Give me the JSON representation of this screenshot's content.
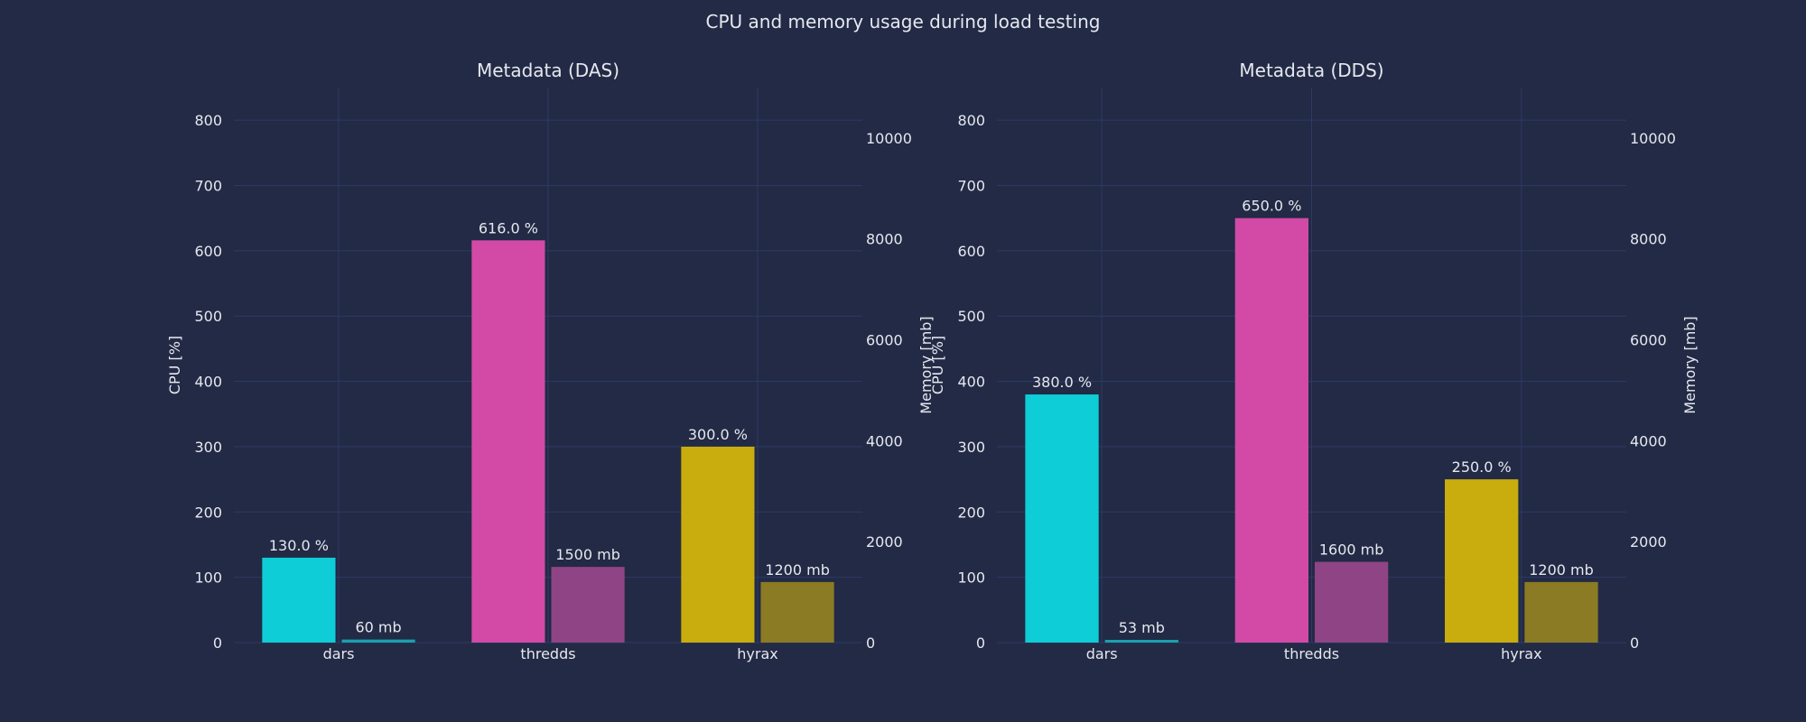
{
  "title": "CPU and memory usage during load testing",
  "colors": {
    "background": "#222a45",
    "grid": "#2d3a66",
    "text": "#e6e8ef",
    "dars": "#0ecdd6",
    "dars_mem": "#1aa0ae",
    "thredds": "#d24aa6",
    "thredds_mem": "#8f4485",
    "hyrax": "#c9ad0e",
    "hyrax_mem": "#8a7b24"
  },
  "chart_data": [
    {
      "type": "bar",
      "title": "Metadata (DAS)",
      "categories": [
        "dars",
        "thredds",
        "hyrax"
      ],
      "ylabel": "CPU [%]",
      "y2label": "Memory [mb]",
      "ylim": [
        0,
        850
      ],
      "y2lim": [
        0,
        11000
      ],
      "yticks": [
        0,
        100,
        200,
        300,
        400,
        500,
        600,
        700,
        800
      ],
      "y2ticks": [
        0,
        2000,
        4000,
        6000,
        8000,
        10000
      ],
      "grid": true,
      "series": [
        {
          "name": "CPU",
          "axis": "y",
          "values": [
            130,
            616,
            300
          ],
          "labels": [
            "130.0 %",
            "616.0 %",
            "300.0 %"
          ]
        },
        {
          "name": "Memory",
          "axis": "y2",
          "values": [
            60,
            1500,
            1200
          ],
          "labels": [
            "60 mb",
            "1500 mb",
            "1200 mb"
          ]
        }
      ]
    },
    {
      "type": "bar",
      "title": "Metadata (DDS)",
      "categories": [
        "dars",
        "thredds",
        "hyrax"
      ],
      "ylabel": "CPU [%]",
      "y2label": "Memory [mb]",
      "ylim": [
        0,
        850
      ],
      "y2lim": [
        0,
        11000
      ],
      "yticks": [
        0,
        100,
        200,
        300,
        400,
        500,
        600,
        700,
        800
      ],
      "y2ticks": [
        0,
        2000,
        4000,
        6000,
        8000,
        10000
      ],
      "grid": true,
      "series": [
        {
          "name": "CPU",
          "axis": "y",
          "values": [
            380,
            650,
            250
          ],
          "labels": [
            "380.0 %",
            "650.0 %",
            "250.0 %"
          ]
        },
        {
          "name": "Memory",
          "axis": "y2",
          "values": [
            53,
            1600,
            1200
          ],
          "labels": [
            "53 mb",
            "1600 mb",
            "1200 mb"
          ]
        }
      ]
    }
  ]
}
